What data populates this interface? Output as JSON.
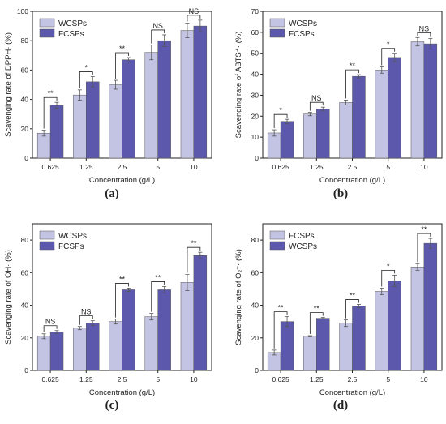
{
  "colors": {
    "series_light": "#c3c3e3",
    "series_dark": "#5c59ad",
    "frame": "#222222",
    "bar_edge": "#555555"
  },
  "chart_data": [
    {
      "type": "bar",
      "panel_label": "(a)",
      "categories": [
        "0.625",
        "1.25",
        "2.5",
        "5",
        "10"
      ],
      "xlabel": "Concentration (g/L)",
      "ylabel": "Scavenging rate of DPPH· (%)",
      "ylim": [
        0,
        100
      ],
      "yticks": [
        "0",
        "20",
        "40",
        "60",
        "80",
        "100"
      ],
      "legend_position": "top-left",
      "series": [
        {
          "name": "WCSPs",
          "values": [
            17,
            43,
            50,
            72,
            87
          ],
          "errors": [
            2,
            3.5,
            3,
            5,
            5
          ],
          "color": "#c3c3e3"
        },
        {
          "name": "FCSPs",
          "values": [
            36,
            52,
            67,
            80,
            90
          ],
          "errors": [
            2,
            3.5,
            1.5,
            4,
            4
          ],
          "color": "#5c59ad"
        }
      ],
      "significance": [
        "**",
        "*",
        "**",
        "NS",
        "NS"
      ]
    },
    {
      "type": "bar",
      "panel_label": "(b)",
      "categories": [
        "0.625",
        "1.25",
        "2.5",
        "5",
        "10"
      ],
      "xlabel": "Concentration (g/L)",
      "ylabel": "Scavenging rate of ABTS⁺· (%)",
      "ylim": [
        0,
        70
      ],
      "yticks": [
        "0",
        "10",
        "20",
        "30",
        "40",
        "50",
        "60",
        "70"
      ],
      "legend_position": "top-left",
      "series": [
        {
          "name": "WCSPs",
          "values": [
            12,
            21,
            26.5,
            42,
            55.5
          ],
          "errors": [
            1.5,
            0.8,
            1.2,
            1.5,
            2
          ],
          "color": "#c3c3e3"
        },
        {
          "name": "FCSPs",
          "values": [
            17.5,
            23.5,
            39,
            48,
            54.5
          ],
          "errors": [
            1,
            0.8,
            0.8,
            2,
            2.5
          ],
          "color": "#5c59ad"
        }
      ],
      "significance": [
        "*",
        "NS",
        "**",
        "*",
        "NS"
      ]
    },
    {
      "type": "bar",
      "panel_label": "(c)",
      "categories": [
        "0.625",
        "1.25",
        "2.5",
        "5",
        "10"
      ],
      "xlabel": "Concentration (g/L)",
      "ylabel": "Scavenging rate of OH· (%)",
      "ylim": [
        0,
        90
      ],
      "yticks": [
        "0",
        "20",
        "40",
        "60",
        "80"
      ],
      "legend_position": "top-left",
      "series": [
        {
          "name": "WCSPs",
          "values": [
            21,
            26,
            30,
            33,
            54
          ],
          "errors": [
            1.5,
            1,
            1.5,
            2,
            5
          ],
          "color": "#c3c3e3"
        },
        {
          "name": "FCSPs",
          "values": [
            23.5,
            29,
            49.5,
            49.5,
            70.5
          ],
          "errors": [
            1,
            1.5,
            1,
            2,
            2
          ],
          "color": "#5c59ad"
        }
      ],
      "significance": [
        "NS",
        "NS",
        "**",
        "**",
        "**"
      ]
    },
    {
      "type": "bar",
      "panel_label": "(d)",
      "categories": [
        "0.625",
        "1.25",
        "2.5",
        "5",
        "10"
      ],
      "xlabel": "Concentration (g/L)",
      "ylabel": "Scavenging rate of O₂⁻· (%)",
      "ylim": [
        0,
        90
      ],
      "yticks": [
        "0",
        "20",
        "40",
        "60",
        "80"
      ],
      "legend_position": "top-left",
      "series": [
        {
          "name": "FCSPs",
          "values": [
            11,
            21,
            29,
            48.5,
            63.5
          ],
          "errors": [
            1.5,
            0.4,
            2,
            2,
            2
          ],
          "color": "#c3c3e3"
        },
        {
          "name": "WCSPs",
          "values": [
            30,
            32,
            39.5,
            55,
            78
          ],
          "errors": [
            3,
            0.5,
            1,
            3.5,
            3
          ],
          "color": "#5c59ad"
        }
      ],
      "significance": [
        "**",
        "**",
        "**",
        "*",
        "**"
      ]
    }
  ]
}
